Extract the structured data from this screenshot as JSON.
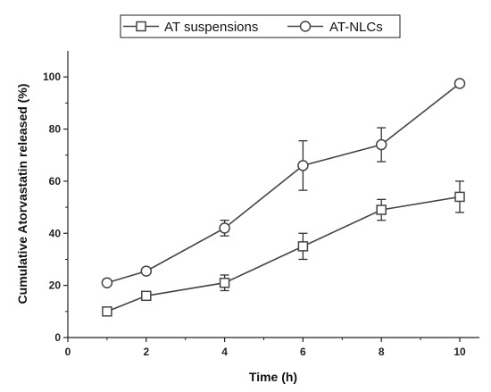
{
  "chart_data": {
    "type": "line",
    "title": "",
    "xlabel": "Time (h)",
    "ylabel": "Cumulative Atorvastatin released (%)",
    "xlim": [
      0,
      10
    ],
    "ylim": [
      0,
      110
    ],
    "xticks": [
      0,
      2,
      4,
      6,
      8,
      10
    ],
    "yticks": [
      0,
      20,
      40,
      60,
      80,
      100
    ],
    "grid": false,
    "legend_position": "top-center",
    "series": [
      {
        "name": "AT suspensions",
        "marker": "square",
        "color": "#444444",
        "x": [
          1,
          2,
          4,
          6,
          8,
          10
        ],
        "y": [
          10,
          16,
          21,
          35,
          49,
          54
        ],
        "error": [
          0.8,
          1.0,
          3,
          5,
          4,
          6
        ]
      },
      {
        "name": "AT-NLCs",
        "marker": "circle",
        "color": "#444444",
        "x": [
          1,
          2,
          4,
          6,
          8,
          10
        ],
        "y": [
          21,
          25.5,
          42,
          66,
          74,
          97.5
        ],
        "error": [
          0.5,
          0.8,
          3,
          9.5,
          6.5,
          1
        ]
      }
    ]
  }
}
